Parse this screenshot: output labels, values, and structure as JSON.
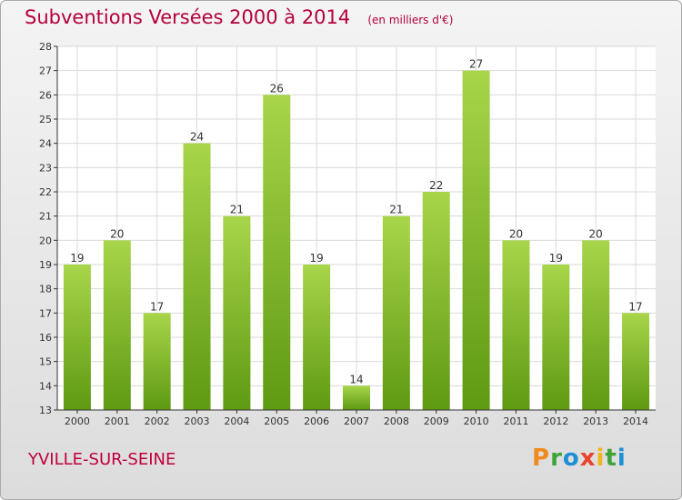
{
  "header": {
    "title": "Subventions Versées 2000 à 2014",
    "subtitle": "(en milliers d'€)"
  },
  "footer": {
    "place": "YVILLE-SUR-SEINE",
    "brand": "Proxiti"
  },
  "colors": {
    "title": "#b5003b",
    "bar_top": "#a8d54a",
    "bar_bottom": "#5e9a12",
    "grid": "#d9d9d9",
    "axis": "#333333",
    "brand_letters": [
      "#f08a1e",
      "#3fa33a",
      "#1e8fd5",
      "#e8442e",
      "#f2b51c",
      "#3fa33a",
      "#1e8fd5"
    ]
  },
  "chart_data": {
    "type": "bar",
    "categories": [
      "2000",
      "2001",
      "2002",
      "2003",
      "2004",
      "2005",
      "2006",
      "2007",
      "2008",
      "2009",
      "2010",
      "2011",
      "2012",
      "2013",
      "2014"
    ],
    "values": [
      19,
      20,
      17,
      24,
      21,
      26,
      19,
      14,
      21,
      22,
      27,
      20,
      19,
      20,
      17
    ],
    "ylim": [
      13,
      28
    ],
    "yticks": [
      13,
      14,
      15,
      16,
      17,
      18,
      19,
      20,
      21,
      22,
      23,
      24,
      25,
      26,
      27,
      28
    ],
    "grid": true,
    "data_labels": true,
    "title": "Subventions Versées 2000 à 2014",
    "xlabel": "",
    "ylabel": ""
  }
}
